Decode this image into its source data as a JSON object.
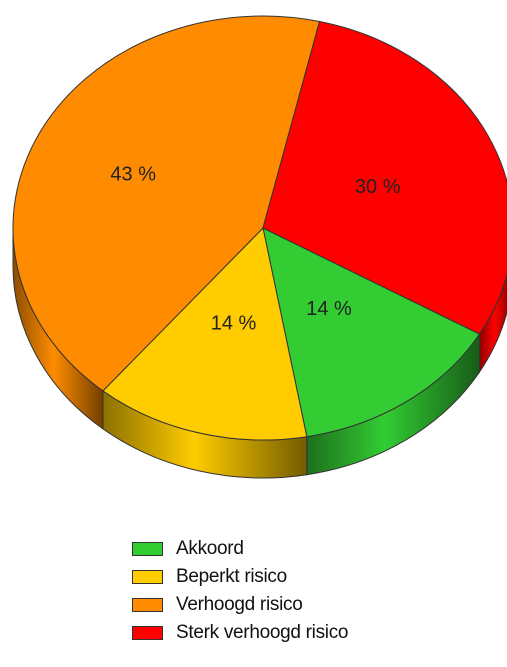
{
  "chart_data": {
    "type": "pie",
    "title": "",
    "categories": [
      "Akkoord",
      "Beperkt risico",
      "Verhoogd risico",
      "Sterk verhoogd risico"
    ],
    "values": [
      14,
      14,
      43,
      30
    ],
    "value_labels": [
      "14 %",
      "14 %",
      "43 %",
      "30 %"
    ],
    "colors": [
      "#33cc33",
      "#ffcc00",
      "#ff8c00",
      "#ff0000"
    ],
    "legend_position": "bottom",
    "style": "3d"
  },
  "legend": {
    "items": [
      {
        "label": "Akkoord",
        "color": "#33cc33"
      },
      {
        "label": "Beperkt risico",
        "color": "#ffcc00"
      },
      {
        "label": "Verhoogd risico",
        "color": "#ff8c00"
      },
      {
        "label": "Sterk verhoogd risico",
        "color": "#ff0000"
      }
    ]
  }
}
